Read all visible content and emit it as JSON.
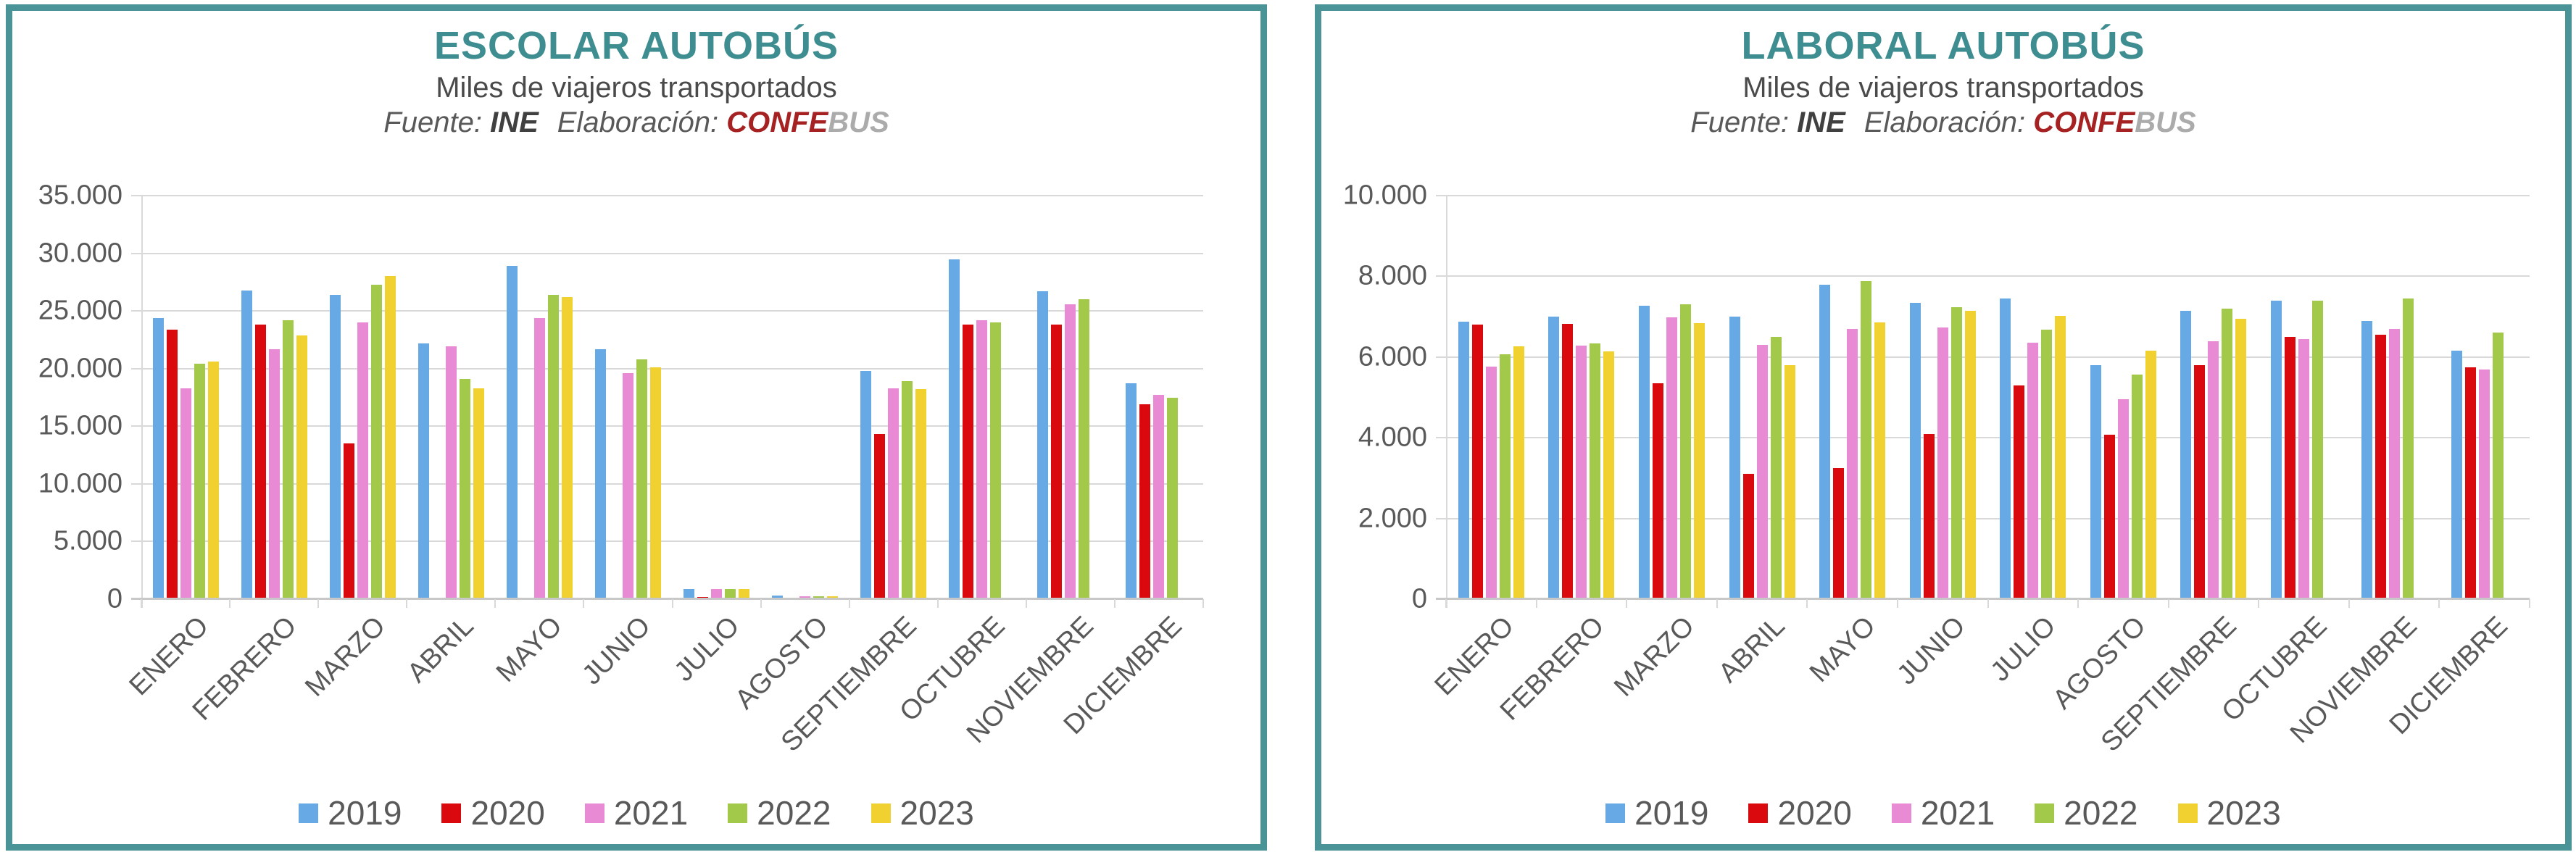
{
  "page": {
    "background": "#ffffff",
    "panel_border_color": "#4A9396",
    "title_color": "#3E8D90",
    "gridline_color": "#D9D9D9",
    "axis_text_color": "#595959"
  },
  "charts": [
    {
      "title": "ESCOLAR AUTOBÚS",
      "subtitle": "Miles de viajeros transportados",
      "source_label": "Fuente:",
      "source_value": "INE",
      "elaboration_label": "Elaboración:",
      "elaboration_value_primary": "CONFE",
      "elaboration_value_secondary": "BUS",
      "chart_data": {
        "type": "bar",
        "title": "ESCOLAR AUTOBÚS",
        "subtitle": "Miles de viajeros transportados",
        "categories": [
          "ENERO",
          "FEBRERO",
          "MARZO",
          "ABRIL",
          "MAYO",
          "JUNIO",
          "JULIO",
          "AGOSTO",
          "SEPTIEMBRE",
          "OCTUBRE",
          "NOVIEMBRE",
          "DICIEMBRE"
        ],
        "series": [
          {
            "name": "2019",
            "color": "#66A9E4",
            "values": [
              24400,
              26800,
              26400,
              22200,
              28900,
              21700,
              900,
              300,
              19800,
              29500,
              26700,
              18700
            ]
          },
          {
            "name": "2020",
            "color": "#D9090E",
            "values": [
              23400,
              23800,
              13500,
              0,
              0,
              0,
              200,
              100,
              14300,
              23800,
              23800,
              16900
            ]
          },
          {
            "name": "2021",
            "color": "#E88BD4",
            "values": [
              18300,
              21700,
              24000,
              21900,
              24400,
              19600,
              880,
              250,
              18300,
              24200,
              25600,
              17700
            ]
          },
          {
            "name": "2022",
            "color": "#A2C94A",
            "values": [
              20400,
              24200,
              27300,
              19100,
              26400,
              20800,
              870,
              250,
              18900,
              24000,
              26000,
              17500
            ]
          },
          {
            "name": "2023",
            "color": "#F0D130",
            "values": [
              20600,
              22900,
              28000,
              18300,
              26200,
              20100,
              850,
              250,
              18200,
              null,
              null,
              null
            ]
          }
        ],
        "ylim": [
          0,
          35000
        ],
        "yticks": [
          {
            "value": 35000,
            "label": "35.000"
          },
          {
            "value": 30000,
            "label": "30.000"
          },
          {
            "value": 25000,
            "label": "25.000"
          },
          {
            "value": 20000,
            "label": "20.000"
          },
          {
            "value": 15000,
            "label": "15.000"
          },
          {
            "value": 10000,
            "label": "10.000"
          },
          {
            "value": 5000,
            "label": "5.000"
          },
          {
            "value": 0,
            "label": "0"
          }
        ],
        "grid": true,
        "legend_position": "bottom"
      }
    },
    {
      "title": "LABORAL AUTOBÚS",
      "subtitle": "Miles de viajeros transportados",
      "source_label": "Fuente:",
      "source_value": "INE",
      "elaboration_label": "Elaboración:",
      "elaboration_value_primary": "CONFE",
      "elaboration_value_secondary": "BUS",
      "chart_data": {
        "type": "bar",
        "title": "LABORAL AUTOBÚS",
        "subtitle": "Miles de viajeros transportados",
        "categories": [
          "ENERO",
          "FEBRERO",
          "MARZO",
          "ABRIL",
          "MAYO",
          "JUNIO",
          "JULIO",
          "AGOSTO",
          "SEPTIEMBRE",
          "OCTUBRE",
          "NOVIEMBRE",
          "DICIEMBRE"
        ],
        "series": [
          {
            "name": "2019",
            "color": "#66A9E4",
            "values": [
              6870,
              7000,
              7280,
              7000,
              7800,
              7350,
              7450,
              5800,
              7150,
              7400,
              6900,
              6150
            ]
          },
          {
            "name": "2020",
            "color": "#D9090E",
            "values": [
              6800,
              6820,
              5350,
              3100,
              3250,
              4100,
              5300,
              4080,
              5800,
              6500,
              6550,
              5750
            ]
          },
          {
            "name": "2021",
            "color": "#E88BD4",
            "values": [
              5770,
              6290,
              6980,
              6300,
              6700,
              6730,
              6350,
              4960,
              6400,
              6450,
              6700,
              5700
            ]
          },
          {
            "name": "2022",
            "color": "#A2C94A",
            "values": [
              6070,
              6330,
              7310,
              6500,
              7890,
              7240,
              6680,
              5570,
              7200,
              7400,
              7450,
              6600
            ]
          },
          {
            "name": "2023",
            "color": "#F0D130",
            "values": [
              6260,
              6140,
              6840,
              5800,
              6850,
              7150,
              7020,
              6150,
              6950,
              null,
              null,
              null
            ]
          }
        ],
        "ylim": [
          0,
          10000
        ],
        "yticks": [
          {
            "value": 10000,
            "label": "10.000"
          },
          {
            "value": 8000,
            "label": "8.000"
          },
          {
            "value": 6000,
            "label": "6.000"
          },
          {
            "value": 4000,
            "label": "4.000"
          },
          {
            "value": 2000,
            "label": "2.000"
          },
          {
            "value": 0,
            "label": "0"
          }
        ],
        "grid": true,
        "legend_position": "bottom"
      }
    }
  ]
}
